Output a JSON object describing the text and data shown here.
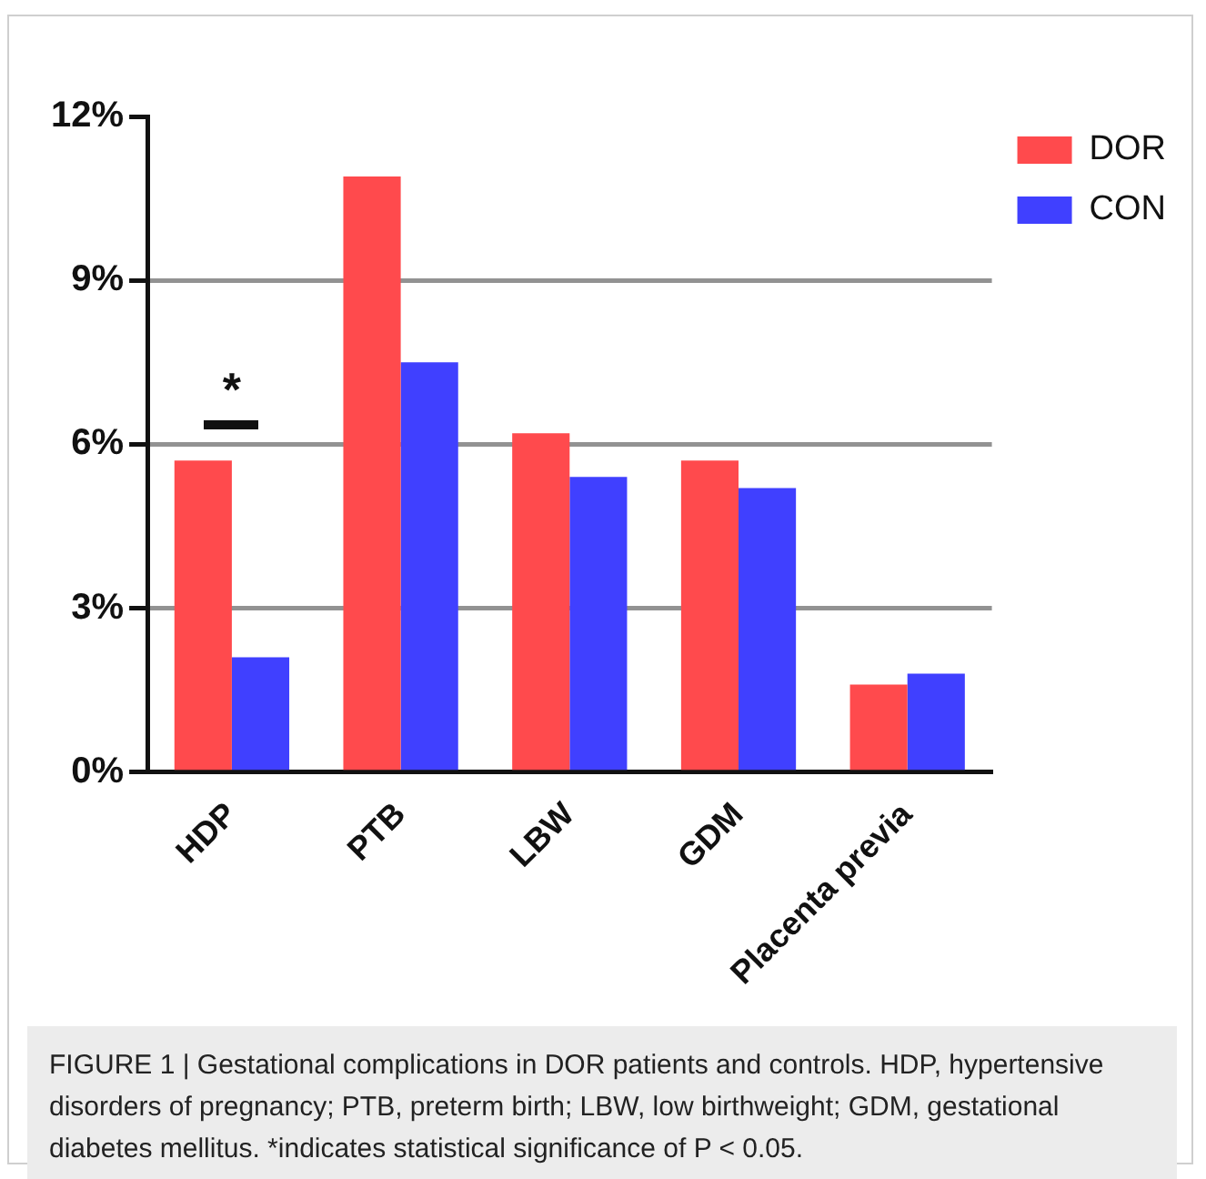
{
  "chart_data": {
    "type": "bar",
    "categories": [
      "HDP",
      "PTB",
      "LBW",
      "GDM",
      "Placenta previa"
    ],
    "series": [
      {
        "name": "DOR",
        "color": "#ff4a4d",
        "values": [
          5.7,
          10.9,
          6.2,
          5.7,
          1.6
        ]
      },
      {
        "name": "CON",
        "color": "#4040ff",
        "values": [
          2.1,
          7.5,
          5.4,
          5.2,
          1.8
        ]
      }
    ],
    "ylim": [
      0,
      12
    ],
    "yticks": [
      {
        "value": 0,
        "label": "0%"
      },
      {
        "value": 3,
        "label": "3%"
      },
      {
        "value": 6,
        "label": "6%"
      },
      {
        "value": 9,
        "label": "9%"
      },
      {
        "value": 12,
        "label": "12%"
      }
    ],
    "grid": "y",
    "legend": "top right",
    "annotations": [
      "*",
      "FIGURE 1 | Gestational complications in DOR patients and controls. HDP, hypertensive disorders of pregnancy; PTB, preterm birth; LBW, low birthweight; GDM, gestational diabetes mellitus. *indicates statistical significance of P < 0.05."
    ]
  }
}
